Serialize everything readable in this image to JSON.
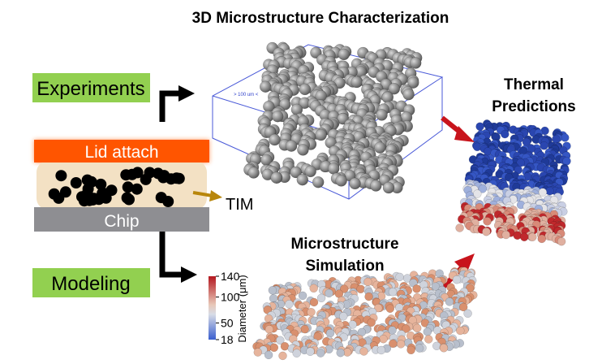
{
  "header": {
    "title": "3D Microstructure Characterization"
  },
  "labels": {
    "experiments": "Experiments",
    "modeling": "Modeling",
    "lid_attach": "Lid attach",
    "chip": "Chip",
    "tim": "TIM",
    "scale_note": "> 100 um <",
    "thermal_predictions": [
      "Thermal",
      "Predictions"
    ],
    "microstructure_simulation": [
      "Microstructure",
      "Simulation"
    ]
  },
  "colorbar": {
    "label": "Diameter (μm)",
    "ticks": [
      140,
      100,
      50,
      18
    ]
  }
}
